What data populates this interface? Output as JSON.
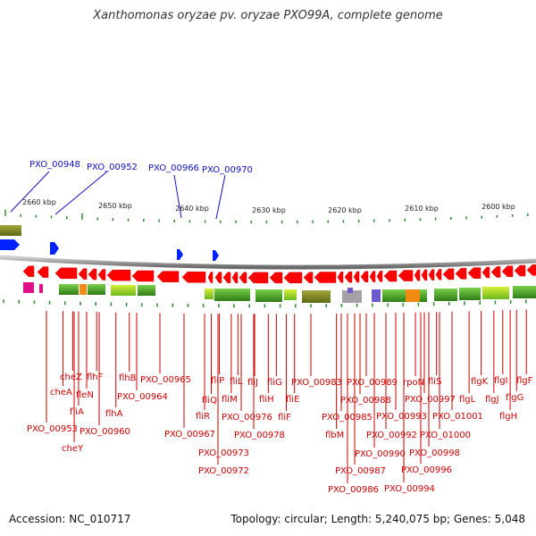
{
  "title": "Xanthomonas oryzae pv. oryzae PXO99A, complete genome",
  "footer": {
    "accession": "Accession: NC_010717",
    "summary": "Topology: circular; Length: 5,240,075 bp; Genes: 5,048"
  },
  "colors": {
    "top_label": "#1010c0",
    "bottom_label": "#cc0000",
    "gene_arrow": "#ff0000",
    "forward_arrow": "#0000ff",
    "backbone": "#8a8a8a",
    "tick": "#2a8a2a",
    "track_green": "#3c9a1e",
    "track_olive": "#7a8c20",
    "track_orange": "#f08a10",
    "track_magenta": "#e0108a",
    "track_purple": "#6a5acd",
    "track_grey": "#a8a0a8"
  },
  "scale_ticks": [
    {
      "label": "2660 kbp"
    },
    {
      "label": "2650 kbp"
    },
    {
      "label": "2640 kbp"
    },
    {
      "label": "2630 kbp"
    },
    {
      "label": "2620 kbp"
    },
    {
      "label": "2610 kbp"
    },
    {
      "label": "2600 kbp"
    }
  ],
  "top_labels": [
    {
      "text": "PXO_00948"
    },
    {
      "text": "PXO_00952"
    },
    {
      "text": "PXO_00966"
    },
    {
      "text": "PXO_00970"
    }
  ],
  "bottom_labels": [
    {
      "text": "cheZ"
    },
    {
      "text": "flhF"
    },
    {
      "text": "flhB"
    },
    {
      "text": "PXO_00965"
    },
    {
      "text": "cheA"
    },
    {
      "text": "fleN"
    },
    {
      "text": "PXO_00964"
    },
    {
      "text": "fliA"
    },
    {
      "text": "flhA"
    },
    {
      "text": "PXO_00953"
    },
    {
      "text": "PXO_00960"
    },
    {
      "text": "cheY"
    },
    {
      "text": "fliP"
    },
    {
      "text": "fliL"
    },
    {
      "text": "fliJ"
    },
    {
      "text": "fliG"
    },
    {
      "text": "fliQ"
    },
    {
      "text": "fliM"
    },
    {
      "text": "fliH"
    },
    {
      "text": "fliE"
    },
    {
      "text": "fliR"
    },
    {
      "text": "PXO_00976"
    },
    {
      "text": "fliF"
    },
    {
      "text": "PXO_00967"
    },
    {
      "text": "PXO_00978"
    },
    {
      "text": "PXO_00973"
    },
    {
      "text": "PXO_00972"
    },
    {
      "text": "PXO_00983"
    },
    {
      "text": "PXO_00989"
    },
    {
      "text": "rpoN"
    },
    {
      "text": "fliS"
    },
    {
      "text": "flgK"
    },
    {
      "text": "flgI"
    },
    {
      "text": "flgF"
    },
    {
      "text": "PXO_00988"
    },
    {
      "text": "PXO_00997"
    },
    {
      "text": "flgL"
    },
    {
      "text": "flgJ"
    },
    {
      "text": "flgG"
    },
    {
      "text": "PXO_00985"
    },
    {
      "text": "PXO_00993"
    },
    {
      "text": "PXO_01001"
    },
    {
      "text": "flgH"
    },
    {
      "text": "flbM"
    },
    {
      "text": "PXO_00992"
    },
    {
      "text": "PXO_01000"
    },
    {
      "text": "PXO_00990"
    },
    {
      "text": "PXO_00998"
    },
    {
      "text": "PXO_00987"
    },
    {
      "text": "PXO_00996"
    },
    {
      "text": "PXO_00986"
    },
    {
      "text": "PXO_00994"
    }
  ]
}
